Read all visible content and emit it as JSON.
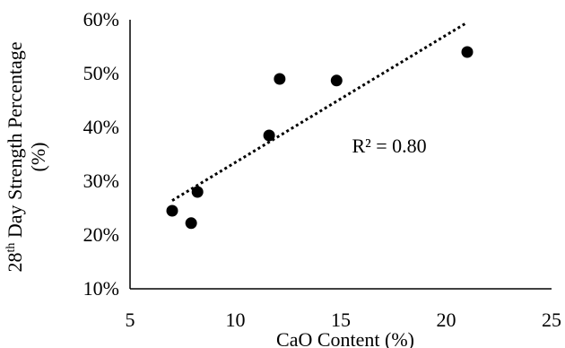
{
  "chart_data": {
    "type": "scatter",
    "title": "",
    "xlabel": "CaO Content (%)",
    "ylabel": {
      "prefix": "28",
      "superscript": "th",
      "suffix": " Day Strength Percentage",
      "line2": "(%)"
    },
    "xlim": [
      5,
      25
    ],
    "ylim": [
      10,
      60
    ],
    "x_ticks": [
      5,
      10,
      15,
      20,
      25
    ],
    "x_tick_labels": [
      "5",
      "10",
      "15",
      "20",
      "25"
    ],
    "y_ticks": [
      10,
      20,
      30,
      40,
      50,
      60
    ],
    "y_tick_labels": [
      "10%",
      "20%",
      "30%",
      "40%",
      "50%",
      "60%"
    ],
    "grid": false,
    "legend": "none",
    "series": [
      {
        "points": [
          {
            "x": 7.0,
            "y": 24.5
          },
          {
            "x": 7.9,
            "y": 22.2
          },
          {
            "x": 8.2,
            "y": 28.0
          },
          {
            "x": 11.6,
            "y": 38.5
          },
          {
            "x": 12.1,
            "y": 49.0
          },
          {
            "x": 14.8,
            "y": 48.7
          },
          {
            "x": 21.0,
            "y": 54.0
          }
        ]
      }
    ],
    "trendline": {
      "type": "linear",
      "style": "dotted",
      "x_range": [
        7.0,
        21.0
      ],
      "y_range": [
        26.4,
        59.5
      ]
    },
    "annotations": [
      {
        "text": "R² = 0.80",
        "x": 17.3,
        "y": 35.3
      }
    ],
    "colors": {
      "marker": "#000000",
      "trendline": "#000000",
      "axis": "#000000"
    }
  }
}
